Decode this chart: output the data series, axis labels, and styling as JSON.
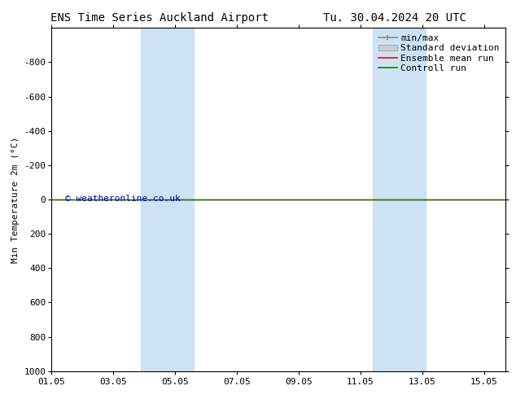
{
  "title": "ENS Time Series Auckland Airport",
  "title2": "Tu. 30.04.2024 20 UTC",
  "ylabel": "Min Temperature 2m (°C)",
  "ylim_top": -1000,
  "ylim_bottom": 1000,
  "yticks": [
    -800,
    -600,
    -400,
    -200,
    0,
    200,
    400,
    600,
    800,
    1000
  ],
  "xtick_labels": [
    "01.05",
    "03.05",
    "05.05",
    "07.05",
    "09.05",
    "11.05",
    "13.05",
    "15.05"
  ],
  "xtick_days": [
    1,
    3,
    5,
    7,
    9,
    11,
    13,
    15
  ],
  "x_min": 1.0,
  "x_max": 15.7,
  "blue_bands": [
    {
      "start": 3.9,
      "end": 5.6
    },
    {
      "start": 11.4,
      "end": 13.1
    }
  ],
  "control_run_y": 0,
  "ensemble_mean_y": 0,
  "watermark": "© weatheronline.co.uk",
  "watermark_color": "#0000cc",
  "background_color": "#ffffff",
  "plot_bg_color": "#ffffff",
  "band_color": "#cde3f5",
  "control_run_color": "#008000",
  "ensemble_mean_color": "#ff0000",
  "minmax_color": "#888888",
  "std_dev_color": "#cccccc",
  "title_fontsize": 10,
  "axis_fontsize": 8,
  "tick_fontsize": 8,
  "legend_fontsize": 8
}
